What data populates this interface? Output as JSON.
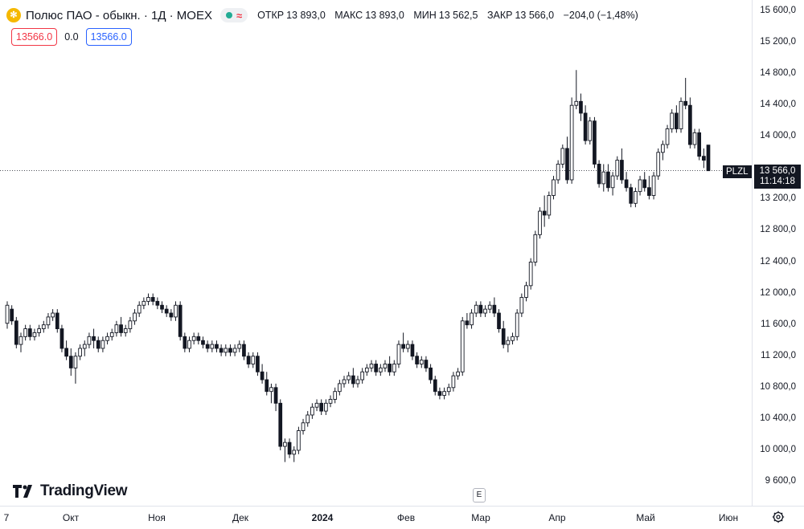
{
  "legend": {
    "symbol_icon": "polyus-logo-icon",
    "title": "Полюс ПАО - обыкн. · 1Д · MOEX",
    "ohlc": {
      "open_label": "ОТКР",
      "open": "13 893,0",
      "high_label": "МАКС",
      "high": "13 893,0",
      "low_label": "МИН",
      "low": "13 562,5",
      "close_label": "ЗАКР",
      "close": "13 566,0",
      "change": "−204,0 (−1,48%)"
    }
  },
  "trade": {
    "sell_price": "13566.0",
    "spread": "0.0",
    "buy_price": "13566.0"
  },
  "price_axis": {
    "labels": [
      "15 600,0",
      "15 200,0",
      "14 800,0",
      "14 400,0",
      "14 000,0",
      "13 200,0",
      "12 800,0",
      "12 400,0",
      "12 000,0",
      "11 600,0",
      "11 200,0",
      "10 800,0",
      "10 400,0",
      "10 000,0",
      "9 600,0"
    ],
    "current_symbol": "PLZL",
    "current_price": "13 566,0",
    "countdown": "11:14:18"
  },
  "time_axis": {
    "labels": [
      "7",
      "Окт",
      "Ноя",
      "Дек",
      "2024",
      "Фев",
      "Мар",
      "Апр",
      "Май",
      "Июн"
    ]
  },
  "branding": {
    "logo_text": "TradingView"
  },
  "controls": {
    "events_button": "E",
    "settings_icon": "gear-icon"
  },
  "chart_data": {
    "type": "candlestick",
    "symbol": "PLZL",
    "ylim": [
      9400,
      15700
    ],
    "candles": [
      [
        11620,
        11900,
        11550,
        11850
      ],
      [
        11800,
        11850,
        11600,
        11650
      ],
      [
        11650,
        11700,
        11300,
        11350
      ],
      [
        11350,
        11500,
        11250,
        11450
      ],
      [
        11450,
        11600,
        11400,
        11550
      ],
      [
        11550,
        11600,
        11400,
        11450
      ],
      [
        11450,
        11550,
        11400,
        11500
      ],
      [
        11500,
        11600,
        11450,
        11550
      ],
      [
        11550,
        11650,
        11500,
        11600
      ],
      [
        11600,
        11750,
        11550,
        11700
      ],
      [
        11700,
        11800,
        11650,
        11750
      ],
      [
        11750,
        11800,
        11500,
        11550
      ],
      [
        11550,
        11600,
        11250,
        11300
      ],
      [
        11300,
        11400,
        11150,
        11200
      ],
      [
        11200,
        11300,
        10950,
        11050
      ],
      [
        11050,
        11250,
        10850,
        11200
      ],
      [
        11200,
        11350,
        11150,
        11300
      ],
      [
        11300,
        11400,
        11200,
        11350
      ],
      [
        11350,
        11500,
        11300,
        11450
      ],
      [
        11450,
        11550,
        11300,
        11400
      ],
      [
        11400,
        11450,
        11250,
        11300
      ],
      [
        11300,
        11450,
        11250,
        11400
      ],
      [
        11400,
        11500,
        11350,
        11450
      ],
      [
        11450,
        11550,
        11400,
        11500
      ],
      [
        11500,
        11650,
        11450,
        11600
      ],
      [
        11600,
        11700,
        11450,
        11500
      ],
      [
        11500,
        11600,
        11450,
        11550
      ],
      [
        11550,
        11700,
        11500,
        11650
      ],
      [
        11650,
        11800,
        11600,
        11750
      ],
      [
        11750,
        11900,
        11700,
        11850
      ],
      [
        11850,
        11950,
        11800,
        11900
      ],
      [
        11900,
        12000,
        11850,
        11950
      ],
      [
        11950,
        12000,
        11850,
        11900
      ],
      [
        11900,
        11950,
        11800,
        11850
      ],
      [
        11850,
        11900,
        11750,
        11800
      ],
      [
        11800,
        11850,
        11700,
        11750
      ],
      [
        11750,
        11800,
        11650,
        11700
      ],
      [
        11700,
        11900,
        11650,
        11850
      ],
      [
        11850,
        11900,
        11400,
        11450
      ],
      [
        11450,
        11500,
        11250,
        11300
      ],
      [
        11300,
        11450,
        11250,
        11400
      ],
      [
        11400,
        11500,
        11350,
        11450
      ],
      [
        11450,
        11500,
        11350,
        11400
      ],
      [
        11400,
        11450,
        11300,
        11350
      ],
      [
        11350,
        11400,
        11250,
        11300
      ],
      [
        11300,
        11400,
        11250,
        11350
      ],
      [
        11350,
        11400,
        11250,
        11300
      ],
      [
        11300,
        11350,
        11200,
        11250
      ],
      [
        11250,
        11350,
        11200,
        11300
      ],
      [
        11300,
        11350,
        11200,
        11250
      ],
      [
        11250,
        11350,
        11200,
        11300
      ],
      [
        11300,
        11400,
        11250,
        11350
      ],
      [
        11350,
        11400,
        11150,
        11200
      ],
      [
        11200,
        11250,
        11050,
        11100
      ],
      [
        11100,
        11250,
        11050,
        11200
      ],
      [
        11200,
        11250,
        10950,
        11000
      ],
      [
        11000,
        11100,
        10850,
        10900
      ],
      [
        10900,
        11000,
        10700,
        10750
      ],
      [
        10750,
        10850,
        10600,
        10800
      ],
      [
        10800,
        10850,
        10500,
        10600
      ],
      [
        10600,
        10650,
        10000,
        10050
      ],
      [
        10050,
        10150,
        9850,
        10100
      ],
      [
        10100,
        10150,
        9900,
        9950
      ],
      [
        9950,
        10050,
        9850,
        10000
      ],
      [
        10000,
        10300,
        9950,
        10250
      ],
      [
        10250,
        10400,
        10200,
        10350
      ],
      [
        10350,
        10500,
        10300,
        10450
      ],
      [
        10450,
        10600,
        10400,
        10550
      ],
      [
        10550,
        10650,
        10500,
        10600
      ],
      [
        10600,
        10650,
        10450,
        10500
      ],
      [
        10500,
        10650,
        10450,
        10600
      ],
      [
        10600,
        10700,
        10550,
        10650
      ],
      [
        10650,
        10800,
        10600,
        10750
      ],
      [
        10750,
        10900,
        10700,
        10850
      ],
      [
        10850,
        10950,
        10800,
        10900
      ],
      [
        10900,
        11000,
        10850,
        10950
      ],
      [
        10950,
        11050,
        10800,
        10850
      ],
      [
        10850,
        10950,
        10800,
        10900
      ],
      [
        10900,
        11050,
        10850,
        11000
      ],
      [
        11000,
        11100,
        10950,
        11050
      ],
      [
        11050,
        11150,
        11000,
        11100
      ],
      [
        11100,
        11150,
        10950,
        11000
      ],
      [
        11000,
        11100,
        10950,
        11050
      ],
      [
        11050,
        11150,
        11000,
        11100
      ],
      [
        11100,
        11200,
        10950,
        11000
      ],
      [
        11000,
        11150,
        10950,
        11100
      ],
      [
        11100,
        11400,
        11050,
        11350
      ],
      [
        11350,
        11500,
        11250,
        11300
      ],
      [
        11300,
        11400,
        11250,
        11350
      ],
      [
        11350,
        11400,
        11150,
        11200
      ],
      [
        11200,
        11250,
        11050,
        11100
      ],
      [
        11100,
        11200,
        11050,
        11150
      ],
      [
        11150,
        11200,
        11000,
        11050
      ],
      [
        11050,
        11100,
        10850,
        10900
      ],
      [
        10900,
        10950,
        10700,
        10750
      ],
      [
        10750,
        10800,
        10650,
        10700
      ],
      [
        10700,
        10800,
        10650,
        10750
      ],
      [
        10750,
        10850,
        10700,
        10800
      ],
      [
        10800,
        11000,
        10750,
        10950
      ],
      [
        10950,
        11050,
        10900,
        11000
      ],
      [
        11000,
        11700,
        10950,
        11650
      ],
      [
        11650,
        11750,
        11550,
        11600
      ],
      [
        11600,
        11800,
        11550,
        11750
      ],
      [
        11750,
        11900,
        11700,
        11850
      ],
      [
        11850,
        11900,
        11700,
        11750
      ],
      [
        11750,
        11850,
        11700,
        11800
      ],
      [
        11800,
        11900,
        11750,
        11850
      ],
      [
        11850,
        11950,
        11700,
        11750
      ],
      [
        11750,
        11800,
        11500,
        11550
      ],
      [
        11550,
        11650,
        11300,
        11350
      ],
      [
        11350,
        11450,
        11250,
        11400
      ],
      [
        11400,
        11500,
        11350,
        11450
      ],
      [
        11450,
        11800,
        11400,
        11750
      ],
      [
        11750,
        12000,
        11700,
        11950
      ],
      [
        11950,
        12150,
        11900,
        12100
      ],
      [
        12100,
        12450,
        12050,
        12400
      ],
      [
        12400,
        12800,
        12350,
        12750
      ],
      [
        12750,
        13100,
        12700,
        13050
      ],
      [
        13050,
        13250,
        12850,
        13000
      ],
      [
        13000,
        13300,
        12950,
        13250
      ],
      [
        13250,
        13500,
        13200,
        13450
      ],
      [
        13450,
        13700,
        13400,
        13650
      ],
      [
        13650,
        13900,
        13600,
        13850
      ],
      [
        13850,
        14000,
        13400,
        13450
      ],
      [
        13450,
        14500,
        13400,
        14400
      ],
      [
        14400,
        14850,
        14350,
        14450
      ],
      [
        14450,
        14550,
        14200,
        14300
      ],
      [
        14300,
        14400,
        13900,
        13950
      ],
      [
        13950,
        14250,
        13900,
        14200
      ],
      [
        14200,
        14250,
        13600,
        13650
      ],
      [
        13650,
        13700,
        13350,
        13400
      ],
      [
        13400,
        13650,
        13300,
        13550
      ],
      [
        13550,
        13650,
        13300,
        13350
      ],
      [
        13350,
        13550,
        13250,
        13500
      ],
      [
        13500,
        13750,
        13450,
        13700
      ],
      [
        13700,
        13850,
        13400,
        13450
      ],
      [
        13450,
        13550,
        13300,
        13350
      ],
      [
        13350,
        13400,
        13100,
        13150
      ],
      [
        13150,
        13350,
        13100,
        13300
      ],
      [
        13300,
        13500,
        13250,
        13450
      ],
      [
        13450,
        13550,
        13300,
        13350
      ],
      [
        13350,
        13500,
        13200,
        13250
      ],
      [
        13250,
        13550,
        13200,
        13500
      ],
      [
        13500,
        13850,
        13450,
        13800
      ],
      [
        13800,
        13950,
        13700,
        13900
      ],
      [
        13900,
        14150,
        13850,
        14100
      ],
      [
        14100,
        14350,
        14050,
        14300
      ],
      [
        14300,
        14400,
        14050,
        14100
      ],
      [
        14100,
        14500,
        14050,
        14450
      ],
      [
        14450,
        14750,
        14350,
        14400
      ],
      [
        14400,
        14500,
        13850,
        13900
      ],
      [
        13900,
        14100,
        13850,
        14050
      ],
      [
        14050,
        14100,
        13700,
        13750
      ],
      [
        13750,
        13850,
        13600,
        13700
      ],
      [
        13893,
        13893,
        13562.5,
        13566
      ]
    ]
  }
}
